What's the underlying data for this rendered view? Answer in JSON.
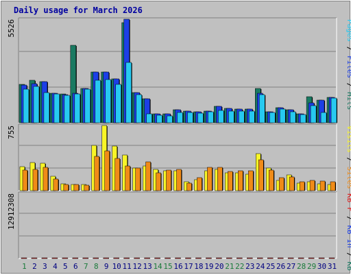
{
  "chart_data": {
    "title": "Daily usage for March 2026",
    "type": "bar",
    "days": [
      1,
      2,
      3,
      4,
      5,
      6,
      7,
      8,
      9,
      10,
      11,
      12,
      13,
      14,
      15,
      16,
      17,
      18,
      19,
      20,
      21,
      22,
      23,
      24,
      25,
      26,
      27,
      28,
      29,
      30,
      31
    ],
    "weekend_days": [
      1,
      7,
      8,
      14,
      15,
      21,
      22,
      28,
      29
    ],
    "colors": {
      "hits": "#1a7a62",
      "files": "#1c3fe6",
      "pages": "#27c9f0",
      "visits": "#f8f528",
      "sites": "#f08b18",
      "kbf": "#e01a1a",
      "weekend_label": "#1a7a3a",
      "weekday_label": "#000080",
      "title": "#0000a0"
    },
    "panels": [
      {
        "id": "hits",
        "max_label": "5526",
        "ymax": 5526,
        "legend": [
          {
            "text": "Pages",
            "color": "#27c9f0"
          },
          {
            "text": " / ",
            "color": "#000000"
          },
          {
            "text": "Files",
            "color": "#1c3fe6"
          },
          {
            "text": " / ",
            "color": "#000000"
          },
          {
            "text": "Hits",
            "color": "#1a7a62"
          }
        ],
        "series": [
          {
            "name": "Hits",
            "color": "#1a7a62",
            "values": [
              2036,
              2277,
              2196,
              1575,
              1535,
              4136,
              1831,
              2724,
              2724,
              2357,
              5335,
              1618,
              1273,
              489,
              474,
              690,
              621,
              595,
              630,
              894,
              774,
              729,
              740,
              1845,
              575,
              812,
              678,
              491,
              1395,
              1217,
              1341
            ]
          },
          {
            "name": "Files",
            "color": "#1c3fe6",
            "values": [
              2000,
              2100,
              2196,
              1575,
              1500,
              1570,
              1831,
              2700,
              2700,
              2357,
              5526,
              1618,
              1273,
              489,
              474,
              690,
              621,
              595,
              630,
              894,
              774,
              729,
              740,
              1567,
              575,
              812,
              678,
              491,
              1060,
              1217,
              1341
            ]
          },
          {
            "name": "Pages",
            "color": "#27c9f0",
            "values": [
              1800,
              1940,
              1620,
              1520,
              1470,
              1540,
              1790,
              2280,
              2320,
              2060,
              3230,
              1510,
              460,
              400,
              350,
              560,
              560,
              530,
              580,
              650,
              630,
              630,
              620,
              1500,
              560,
              720,
              570,
              440,
              900,
              540,
              1310
            ]
          }
        ]
      },
      {
        "id": "visits",
        "max_label": "755",
        "ymax": 755,
        "legend": [
          {
            "text": "Visits",
            "color": "#f8f528"
          },
          {
            "text": " / ",
            "color": "#000000"
          },
          {
            "text": "Sites",
            "color": "#f08b18"
          }
        ],
        "series": [
          {
            "name": "Visits",
            "color": "#f8f528",
            "values": [
              280,
              322,
              314,
              170,
              80,
              74,
              69,
              523,
              755,
              519,
              410,
              262,
              290,
              250,
              230,
              230,
              105,
              130,
              228,
              248,
              208,
              205,
              194,
              433,
              263,
              117,
              182,
              91,
              105,
              83,
              73
            ]
          },
          {
            "name": "Sites",
            "color": "#f08b18",
            "values": [
              240,
              250,
              271,
              136,
              75,
              73,
              61,
              394,
              460,
              372,
              290,
              262,
              335,
              210,
              240,
              250,
              90,
              150,
              270,
              274,
              220,
              230,
              230,
              359,
              240,
              150,
              160,
              100,
              120,
              110,
              100
            ]
          }
        ]
      },
      {
        "id": "kbf",
        "max_label": "12912308",
        "ymax": 12912308,
        "legend": [
          {
            "text": "KB F",
            "color": "#e01a1a"
          },
          {
            "text": " / ",
            "color": "#000000"
          },
          {
            "text": "KB In",
            "color": "#1c3fe6"
          },
          {
            "text": " / ",
            "color": "#000000"
          },
          {
            "text": "KB Out",
            "color": "#1a7a62"
          }
        ],
        "series": [
          {
            "name": "KB F",
            "color": "#e01a1a",
            "values": [
              5600,
              3760,
              3760,
              2720,
              3600,
              750,
              2900,
              12912,
              8460,
              7400,
              3230,
              3230,
              3950,
              3230,
              1900,
              5250,
              1600,
              2180,
              850,
              2200,
              3230,
              3760,
              5050,
              5840,
              5840,
              3600,
              2520,
              1980,
              3230,
              5300,
              780
            ]
          }
        ]
      }
    ]
  }
}
